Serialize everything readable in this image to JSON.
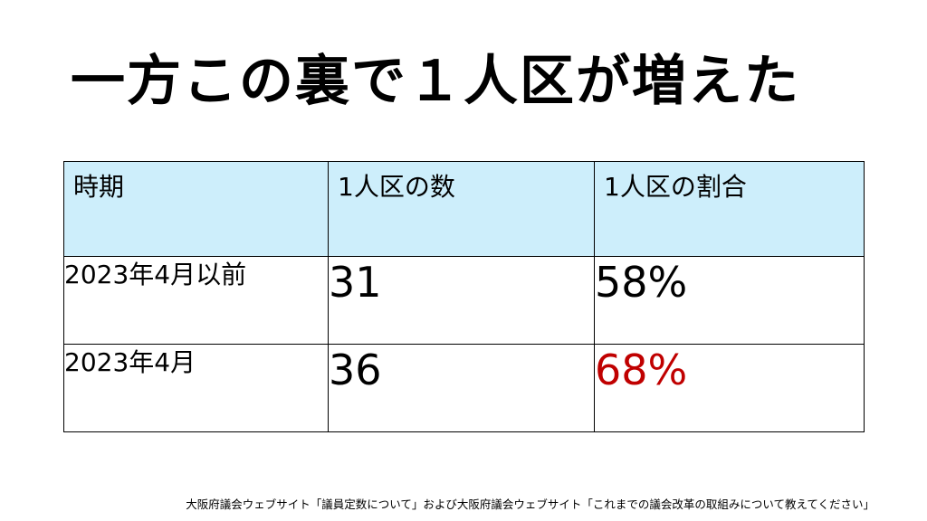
{
  "title": "一方この裏で１人区が増えた",
  "table": {
    "headers": [
      "時期",
      "1人区の数",
      "1人区の割合"
    ],
    "rows": [
      {
        "period": "2023年4月以前",
        "count": "31",
        "ratio": "58%"
      },
      {
        "period": "2023年4月",
        "count": "36",
        "ratio": "68%"
      }
    ]
  },
  "colors": {
    "header_bg": "#cdeefb",
    "highlight": "#c00000"
  },
  "source": "大阪府議会ウェブサイト「議員定数について」および大阪府議会ウェブサイト「これまでの議会改革の取組みについて教えてください」"
}
